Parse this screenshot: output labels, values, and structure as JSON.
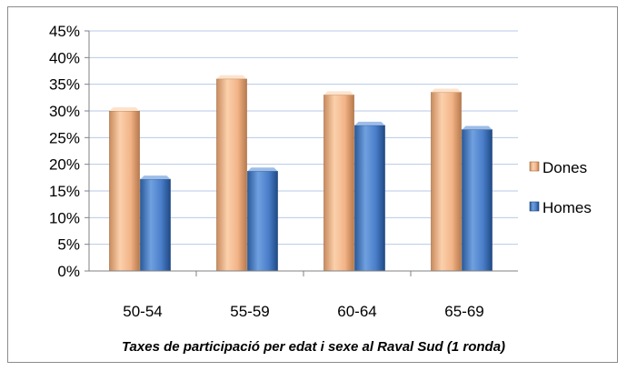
{
  "chart_data": {
    "type": "bar",
    "title": "Taxes de participació per edat i sexe  al Raval Sud (1 ronda)",
    "xlabel": "",
    "ylabel": "",
    "categories": [
      "50-54",
      "55-59",
      "60-64",
      "65-69"
    ],
    "series": [
      {
        "name": "Dones",
        "values": [
          0.3,
          0.36,
          0.33,
          0.335
        ]
      },
      {
        "name": "Homes",
        "values": [
          0.172,
          0.187,
          0.273,
          0.265
        ]
      }
    ],
    "ylim": [
      0,
      0.45
    ],
    "yticks": [
      "0%",
      "5%",
      "10%",
      "15%",
      "20%",
      "25%",
      "30%",
      "35%",
      "40%",
      "45%"
    ],
    "grid": true,
    "legend_position": "right",
    "colors": {
      "Dones": "#f4b183",
      "Homes": "#4a7ec9"
    }
  }
}
